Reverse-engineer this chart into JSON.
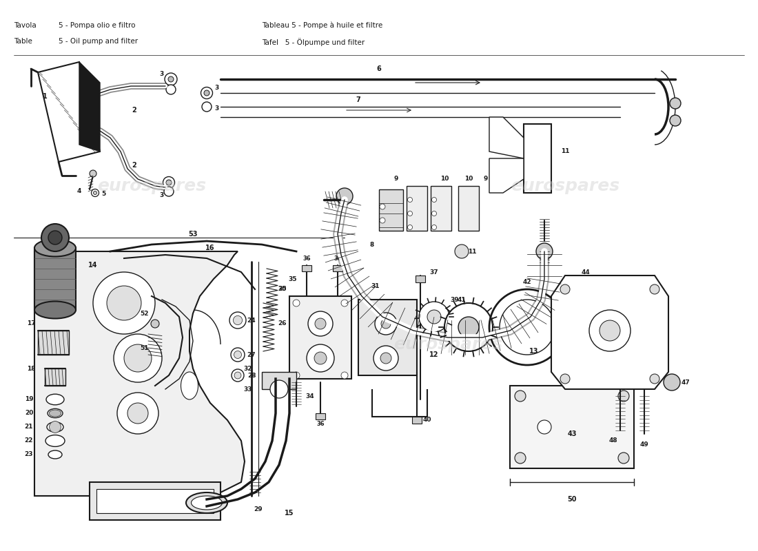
{
  "title_lines": [
    [
      "Tavola",
      "5",
      "- Pompa olio e filtro"
    ],
    [
      "Table",
      "5",
      "- Oil pump and filter"
    ]
  ],
  "title_lines_right": [
    [
      "Tableau",
      "5",
      "- Pompe à huile et filtre"
    ],
    [
      "Tafel",
      "5",
      "- Ölpumpe und filter"
    ]
  ],
  "bg_color": "#ffffff",
  "line_color": "#1a1a1a",
  "watermark_color": "#d0d0d0",
  "watermark_alpha": 0.45
}
